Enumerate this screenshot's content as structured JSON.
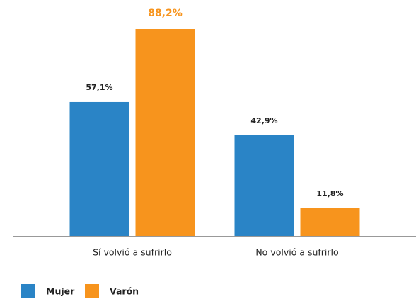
{
  "chart_data": {
    "type": "bar",
    "categories": [
      "Sí volvió a sufrirlo",
      "No volvió a sufrirlo"
    ],
    "series": [
      {
        "name": "Mujer",
        "color": "#2a84c6",
        "values": [
          57.1,
          42.9
        ],
        "value_labels": [
          "57,1%",
          "42,9%"
        ]
      },
      {
        "name": "Varón",
        "color": "#f7941d",
        "values": [
          88.2,
          11.8
        ],
        "value_labels": [
          "88,2%",
          "11,8%"
        ]
      }
    ]
  }
}
